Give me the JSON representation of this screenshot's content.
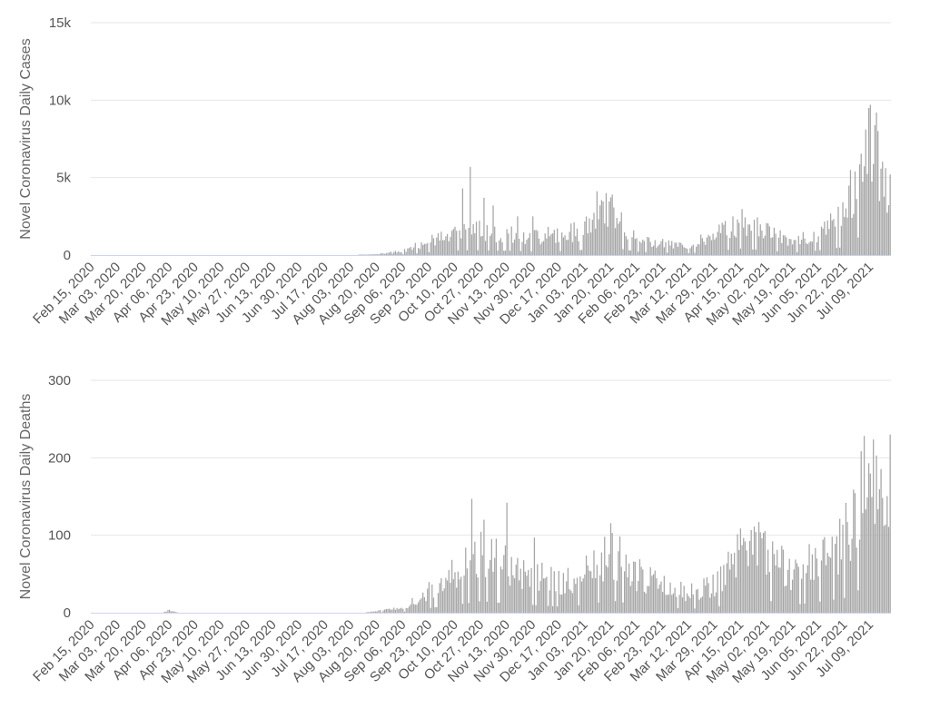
{
  "colors": {
    "bar": "#a6a6a6",
    "grid": "#e6e6e6",
    "axis": "#ccd6eb",
    "text": "#555555"
  },
  "chart_data": [
    {
      "type": "bar",
      "ylabel": "Novel Coronavirus Daily Cases",
      "ylim": [
        0,
        15000
      ],
      "yticks": [
        0,
        5000,
        10000,
        15000
      ],
      "ytick_labels": [
        "0",
        "5k",
        "10k",
        "15k"
      ],
      "x_start": "2020-02-15",
      "x_end": "2021-07-22",
      "x_tick_labels": [
        "Feb 15, 2020",
        "Mar 03, 2020",
        "Mar 20, 2020",
        "Apr 06, 2020",
        "Apr 23, 2020",
        "May 10, 2020",
        "May 27, 2020",
        "Jun 13, 2020",
        "Jun 30, 2020",
        "Jul 17, 2020",
        "Aug 03, 2020",
        "Aug 20, 2020",
        "Sep 06, 2020",
        "Sep 23, 2020",
        "Oct 10, 2020",
        "Oct 27, 2020",
        "Nov 13, 2020",
        "Nov 30, 2020",
        "Dec 17, 2020",
        "Jan 03, 2021",
        "Jan 20, 2021",
        "Feb 06, 2021",
        "Feb 23, 2021",
        "Mar 12, 2021",
        "Mar 29, 2021",
        "Apr 15, 2021",
        "May 02, 2021",
        "May 19, 2021",
        "Jun 05, 2021",
        "Jun 22, 2021",
        "Jul 09, 2021"
      ],
      "grid": true,
      "legend": "none",
      "profile": [
        [
          "2020-02-15",
          0
        ],
        [
          "2020-08-01",
          0
        ],
        [
          "2020-08-20",
          60
        ],
        [
          "2020-09-06",
          250
        ],
        [
          "2020-09-23",
          900
        ],
        [
          "2020-10-10",
          1500
        ],
        [
          "2020-10-27",
          1600
        ],
        [
          "2020-11-13",
          1400
        ],
        [
          "2020-11-30",
          1200
        ],
        [
          "2020-12-17",
          1300
        ],
        [
          "2021-01-03",
          1700
        ],
        [
          "2021-01-12",
          3000
        ],
        [
          "2021-01-20",
          2600
        ],
        [
          "2021-02-06",
          1100
        ],
        [
          "2021-02-23",
          750
        ],
        [
          "2021-03-12",
          600
        ],
        [
          "2021-03-29",
          1300
        ],
        [
          "2021-04-15",
          2100
        ],
        [
          "2021-05-02",
          1500
        ],
        [
          "2021-05-19",
          800
        ],
        [
          "2021-06-05",
          1500
        ],
        [
          "2021-06-22",
          2600
        ],
        [
          "2021-07-02",
          6000
        ],
        [
          "2021-07-09",
          8300
        ],
        [
          "2021-07-16",
          5000
        ],
        [
          "2021-07-22",
          2800
        ]
      ],
      "peaks": [
        [
          "2020-10-15",
          4300
        ],
        [
          "2020-10-20",
          5700
        ],
        [
          "2020-10-29",
          3700
        ],
        [
          "2020-11-04",
          3200
        ],
        [
          "2020-11-20",
          2500
        ],
        [
          "2020-11-30",
          2500
        ],
        [
          "2021-01-17",
          4000
        ],
        [
          "2021-01-21",
          3900
        ],
        [
          "2021-07-09",
          9700
        ],
        [
          "2021-07-13",
          9200
        ],
        [
          "2021-07-22",
          5200
        ]
      ]
    },
    {
      "type": "bar",
      "ylabel": "Novel Coronavirus Daily Deaths",
      "ylim": [
        0,
        300
      ],
      "yticks": [
        0,
        100,
        200,
        300
      ],
      "ytick_labels": [
        "0",
        "100",
        "200",
        "300"
      ],
      "x_start": "2020-02-15",
      "x_end": "2021-07-22",
      "x_tick_labels": [
        "Feb 15, 2020",
        "Mar 03, 2020",
        "Mar 20, 2020",
        "Apr 06, 2020",
        "Apr 23, 2020",
        "May 10, 2020",
        "May 27, 2020",
        "Jun 13, 2020",
        "Jun 30, 2020",
        "Jul 17, 2020",
        "Aug 03, 2020",
        "Aug 20, 2020",
        "Sep 06, 2020",
        "Sep 23, 2020",
        "Oct 10, 2020",
        "Oct 27, 2020",
        "Nov 13, 2020",
        "Nov 30, 2020",
        "Dec 17, 2020",
        "Jan 03, 2021",
        "Jan 20, 2021",
        "Feb 06, 2021",
        "Feb 23, 2021",
        "Mar 12, 2021",
        "Mar 29, 2021",
        "Apr 15, 2021",
        "May 02, 2021",
        "May 19, 2021",
        "Jun 05, 2021",
        "Jun 22, 2021",
        "Jul 09, 2021"
      ],
      "grid": true,
      "legend": "none",
      "profile": [
        [
          "2020-02-15",
          0
        ],
        [
          "2020-04-01",
          0
        ],
        [
          "2020-04-06",
          3
        ],
        [
          "2020-04-12",
          0
        ],
        [
          "2020-08-10",
          0
        ],
        [
          "2020-08-20",
          2
        ],
        [
          "2020-09-06",
          6
        ],
        [
          "2020-09-23",
          30
        ],
        [
          "2020-10-10",
          50
        ],
        [
          "2020-10-27",
          75
        ],
        [
          "2020-11-13",
          60
        ],
        [
          "2020-11-30",
          50
        ],
        [
          "2020-12-17",
          40
        ],
        [
          "2021-01-03",
          50
        ],
        [
          "2021-01-20",
          80
        ],
        [
          "2021-02-06",
          50
        ],
        [
          "2021-02-23",
          35
        ],
        [
          "2021-03-12",
          25
        ],
        [
          "2021-03-29",
          35
        ],
        [
          "2021-04-15",
          75
        ],
        [
          "2021-05-02",
          80
        ],
        [
          "2021-05-19",
          50
        ],
        [
          "2021-06-05",
          70
        ],
        [
          "2021-06-22",
          95
        ],
        [
          "2021-07-02",
          150
        ],
        [
          "2021-07-10",
          175
        ],
        [
          "2021-07-22",
          150
        ]
      ],
      "peaks": [
        [
          "2020-10-21",
          147
        ],
        [
          "2020-10-29",
          120
        ],
        [
          "2020-11-13",
          142
        ],
        [
          "2020-12-01",
          97
        ],
        [
          "2021-01-21",
          103
        ],
        [
          "2021-04-27",
          117
        ],
        [
          "2021-07-08",
          193
        ],
        [
          "2021-07-13",
          203
        ],
        [
          "2021-07-22",
          230
        ]
      ]
    }
  ]
}
